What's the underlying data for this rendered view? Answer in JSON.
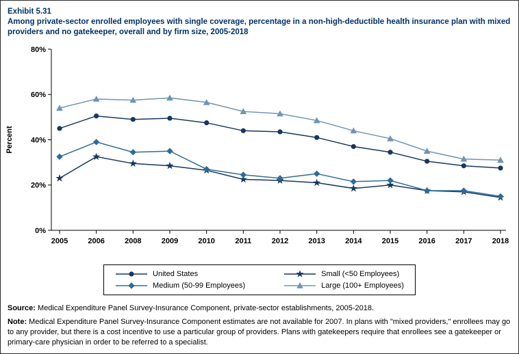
{
  "page": {
    "exhibit": "Exhibit 5.31",
    "title": "Among private-sector enrolled employees with single coverage, percentage in a non-high-deductible health insurance plan with mixed providers and no gatekeeper, overall and by firm size, 2005-2018"
  },
  "chart_data": {
    "type": "line",
    "categories": [
      "2005",
      "2006",
      "2008",
      "2009",
      "2010",
      "2011",
      "2012",
      "2013",
      "2014",
      "2015",
      "2016",
      "2017",
      "2018"
    ],
    "series": [
      {
        "name": "United States",
        "marker": "circle",
        "color": "#17375e",
        "values": [
          45,
          50.5,
          49,
          49.5,
          47.5,
          44,
          43.5,
          41,
          37,
          34.5,
          30.5,
          28.5,
          27.5
        ]
      },
      {
        "name": "Small (<50 Employees)",
        "marker": "star",
        "color": "#17375e",
        "values": [
          23,
          32.5,
          29.5,
          28.5,
          26.5,
          22.5,
          22,
          21,
          18.5,
          20,
          17.5,
          17,
          14.5
        ]
      },
      {
        "name": "Medium (50-99 Employees)",
        "marker": "diamond",
        "color": "#2f6b99",
        "values": [
          32.5,
          39,
          34.5,
          35,
          27,
          24.5,
          23,
          25,
          21.5,
          22,
          17.5,
          17.5,
          15
        ]
      },
      {
        "name": "Large (100+ Employees)",
        "marker": "triangle",
        "color": "#6f95b4",
        "values": [
          54,
          58,
          57.5,
          58.5,
          56.5,
          52.5,
          51.5,
          48.5,
          44,
          40.5,
          35,
          31.5,
          31
        ]
      }
    ],
    "title": "Among private-sector enrolled employees with single coverage, percentage in a non-high-deductible health insurance plan with mixed providers and no gatekeeper, overall and by firm size, 2005-2018",
    "xlabel": "",
    "ylabel": "Percent",
    "ylim": [
      0,
      80
    ],
    "yticks": [
      0,
      20,
      40,
      60,
      80
    ],
    "ytick_labels": [
      "0%",
      "20%",
      "40%",
      "60%",
      "80%"
    ],
    "grid": false,
    "legend_position": "bottom",
    "note_missing_year": "2007"
  },
  "footer": {
    "source_label": "Source:",
    "source_text": " Medical Expenditure Panel Survey-Insurance Component, private-sector establishments, 2005-2018.",
    "note_label": "Note:",
    "note_text": " Medical Expenditure Panel Survey-Insurance Component estimates are not available for 2007. In plans with \"mixed providers,\" enrollees may go to any provider, but there is a cost incentive to use a particular group of providers. Plans with gatekeepers require that enrollees see a gatekeeper or primary-care physician in order to be referred to a specialist."
  }
}
